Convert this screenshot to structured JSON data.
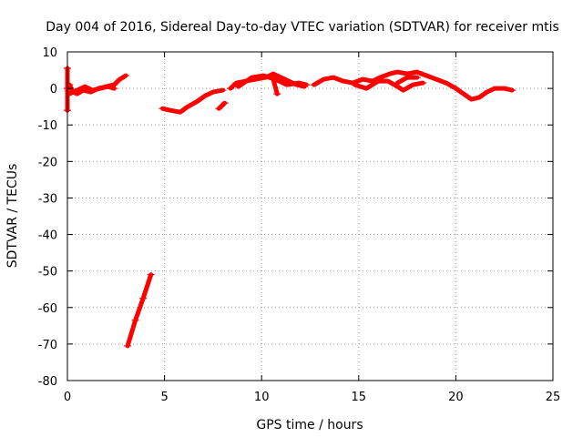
{
  "chart_data": {
    "type": "scatter",
    "title": "Day 004 of 2016, Sidereal Day-to-day VTEC variation (SDTVAR) for receiver mtis",
    "xlabel": "GPS time / hours",
    "ylabel": "SDTVAR / TECUs",
    "xlim": [
      0,
      25
    ],
    "ylim": [
      -80,
      10
    ],
    "xticks": [
      0,
      5,
      10,
      15,
      20,
      25
    ],
    "yticks": [
      -80,
      -70,
      -60,
      -50,
      -40,
      -30,
      -20,
      -10,
      0,
      10
    ],
    "grid": true,
    "legend": "none",
    "series": [
      {
        "name": "SDTVAR",
        "color": "#ff0000",
        "segments": [
          [
            [
              0.0,
              5.5
            ],
            [
              0.0,
              0.0
            ],
            [
              0.0,
              -6.0
            ]
          ],
          [
            [
              0.1,
              1.0
            ],
            [
              0.3,
              -1.0
            ],
            [
              0.5,
              -1.5
            ],
            [
              0.8,
              -0.5
            ],
            [
              1.2,
              -1.0
            ],
            [
              1.6,
              0.0
            ],
            [
              2.0,
              0.5
            ],
            [
              2.4,
              1.0
            ],
            [
              2.7,
              2.5
            ],
            [
              3.0,
              3.5
            ]
          ],
          [
            [
              0.1,
              -1.5
            ],
            [
              0.5,
              -0.5
            ],
            [
              0.9,
              0.5
            ],
            [
              1.3,
              -0.5
            ],
            [
              1.7,
              0.0
            ],
            [
              2.1,
              0.5
            ],
            [
              2.4,
              0.0
            ]
          ],
          [
            [
              3.1,
              -70.5
            ],
            [
              3.5,
              -63.5
            ],
            [
              3.9,
              -57.5
            ],
            [
              4.3,
              -51.0
            ]
          ],
          [
            [
              4.9,
              -5.5
            ],
            [
              5.3,
              -6.0
            ],
            [
              5.8,
              -6.5
            ],
            [
              6.2,
              -5.0
            ],
            [
              6.7,
              -3.5
            ],
            [
              7.1,
              -2.0
            ],
            [
              7.5,
              -1.0
            ],
            [
              8.0,
              -0.5
            ]
          ],
          [
            [
              7.8,
              -5.5
            ],
            [
              8.1,
              -4.0
            ]
          ],
          [
            [
              8.4,
              0.0
            ],
            [
              8.7,
              1.5
            ],
            [
              9.2,
              2.0
            ],
            [
              9.7,
              2.5
            ],
            [
              10.2,
              3.0
            ],
            [
              10.6,
              4.0
            ],
            [
              11.0,
              3.0
            ],
            [
              11.4,
              2.0
            ],
            [
              11.8,
              1.0
            ],
            [
              12.2,
              0.5
            ]
          ],
          [
            [
              8.8,
              0.5
            ],
            [
              9.5,
              3.0
            ],
            [
              10.1,
              3.5
            ],
            [
              10.7,
              2.5
            ],
            [
              11.3,
              1.0
            ],
            [
              11.9,
              1.5
            ],
            [
              12.3,
              1.0
            ]
          ],
          [
            [
              10.6,
              2.5
            ],
            [
              10.8,
              -1.5
            ]
          ],
          [
            [
              12.7,
              1.0
            ],
            [
              13.2,
              2.5
            ],
            [
              13.7,
              3.0
            ],
            [
              14.2,
              2.0
            ],
            [
              14.7,
              1.5
            ],
            [
              15.2,
              2.5
            ],
            [
              15.7,
              2.0
            ],
            [
              16.1,
              3.0
            ],
            [
              16.6,
              4.0
            ],
            [
              17.0,
              4.5
            ],
            [
              17.5,
              4.0
            ],
            [
              18.0,
              4.5
            ],
            [
              18.5,
              3.5
            ],
            [
              19.0,
              2.5
            ],
            [
              19.5,
              1.5
            ],
            [
              20.0,
              0.0
            ],
            [
              20.4,
              -1.5
            ],
            [
              20.8,
              -3.0
            ],
            [
              21.2,
              -2.5
            ],
            [
              21.6,
              -1.0
            ],
            [
              22.0,
              0.0
            ],
            [
              22.5,
              0.0
            ],
            [
              22.9,
              -0.5
            ]
          ],
          [
            [
              14.8,
              1.0
            ],
            [
              15.4,
              0.0
            ],
            [
              16.0,
              2.0
            ],
            [
              16.5,
              2.0
            ],
            [
              17.0,
              0.5
            ],
            [
              17.3,
              -0.5
            ],
            [
              17.8,
              1.0
            ],
            [
              18.3,
              1.5
            ]
          ],
          [
            [
              17.0,
              1.5
            ],
            [
              17.5,
              3.0
            ],
            [
              18.0,
              3.0
            ]
          ]
        ]
      }
    ]
  }
}
